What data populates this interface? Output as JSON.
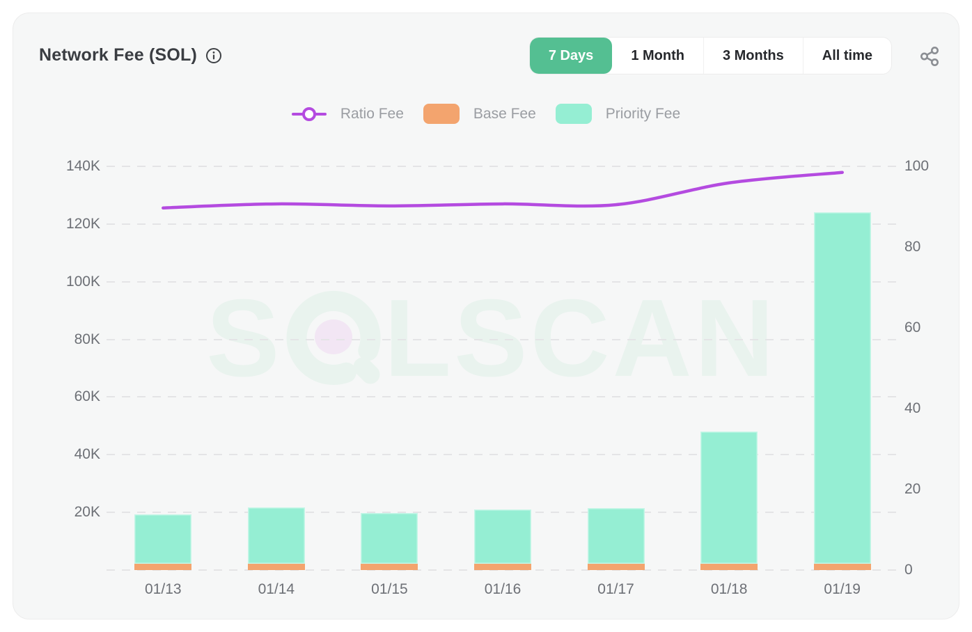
{
  "header": {
    "title": "Network Fee (SOL)",
    "info_icon": "info-icon",
    "share_icon": "share-nodes-icon"
  },
  "time_range": {
    "options": [
      "7 Days",
      "1 Month",
      "3 Months",
      "All time"
    ],
    "selected": "7 Days"
  },
  "legend": {
    "items": [
      {
        "label": "Ratio Fee",
        "marker": "line-with-ring",
        "color": "#b44be0"
      },
      {
        "label": "Base Fee",
        "marker": "square",
        "color": "#f3a46e"
      },
      {
        "label": "Priority Fee",
        "marker": "square",
        "color": "#95eed3"
      }
    ]
  },
  "watermark": {
    "text_start": "S",
    "text_end": "LSCAN",
    "full_text": "SOLSCAN"
  },
  "colors": {
    "accent_green": "#54bf92",
    "bar_priority": "#95eed3",
    "bar_base": "#f3a46e",
    "line_ratio": "#b44be0",
    "card_bg": "#f6f7f7",
    "axis_text": "#6d7076"
  },
  "chart_data": {
    "type": "bar",
    "subtype": "stacked-bars-with-line",
    "title": "Network Fee (SOL)",
    "categories": [
      "01/13",
      "01/14",
      "01/15",
      "01/16",
      "01/17",
      "01/18",
      "01/19"
    ],
    "series": [
      {
        "name": "Base Fee",
        "type": "bar",
        "stack": "fee",
        "axis": "left",
        "color": "#f3a46e",
        "values": [
          2100,
          2100,
          2100,
          2100,
          2200,
          2100,
          2100
        ]
      },
      {
        "name": "Priority Fee",
        "type": "bar",
        "stack": "fee",
        "axis": "left",
        "color": "#95eed3",
        "values": [
          17200,
          19700,
          17600,
          18800,
          19300,
          45900,
          121900
        ]
      },
      {
        "name": "Ratio Fee",
        "type": "line",
        "axis": "right",
        "color": "#b44be0",
        "smooth": true,
        "values": [
          89.7,
          90.7,
          90.2,
          90.7,
          90.5,
          95.9,
          98.5
        ]
      }
    ],
    "left_axis": {
      "min": 0,
      "max": 140000,
      "tick_values": [
        20000,
        40000,
        60000,
        80000,
        100000,
        120000,
        140000
      ],
      "tick_labels": [
        "20K",
        "40K",
        "60K",
        "80K",
        "100K",
        "120K",
        "140K"
      ]
    },
    "right_axis": {
      "min": 0,
      "max": 100,
      "tick_values": [
        0,
        20,
        40,
        60,
        80,
        100
      ],
      "tick_labels": [
        "0",
        "20",
        "40",
        "60",
        "80",
        "100"
      ]
    },
    "grid": {
      "horizontal_dashed": true,
      "gridline_values": [
        0,
        20000,
        40000,
        60000,
        80000,
        100000,
        120000,
        140000
      ]
    },
    "legend_position": "top-center"
  }
}
